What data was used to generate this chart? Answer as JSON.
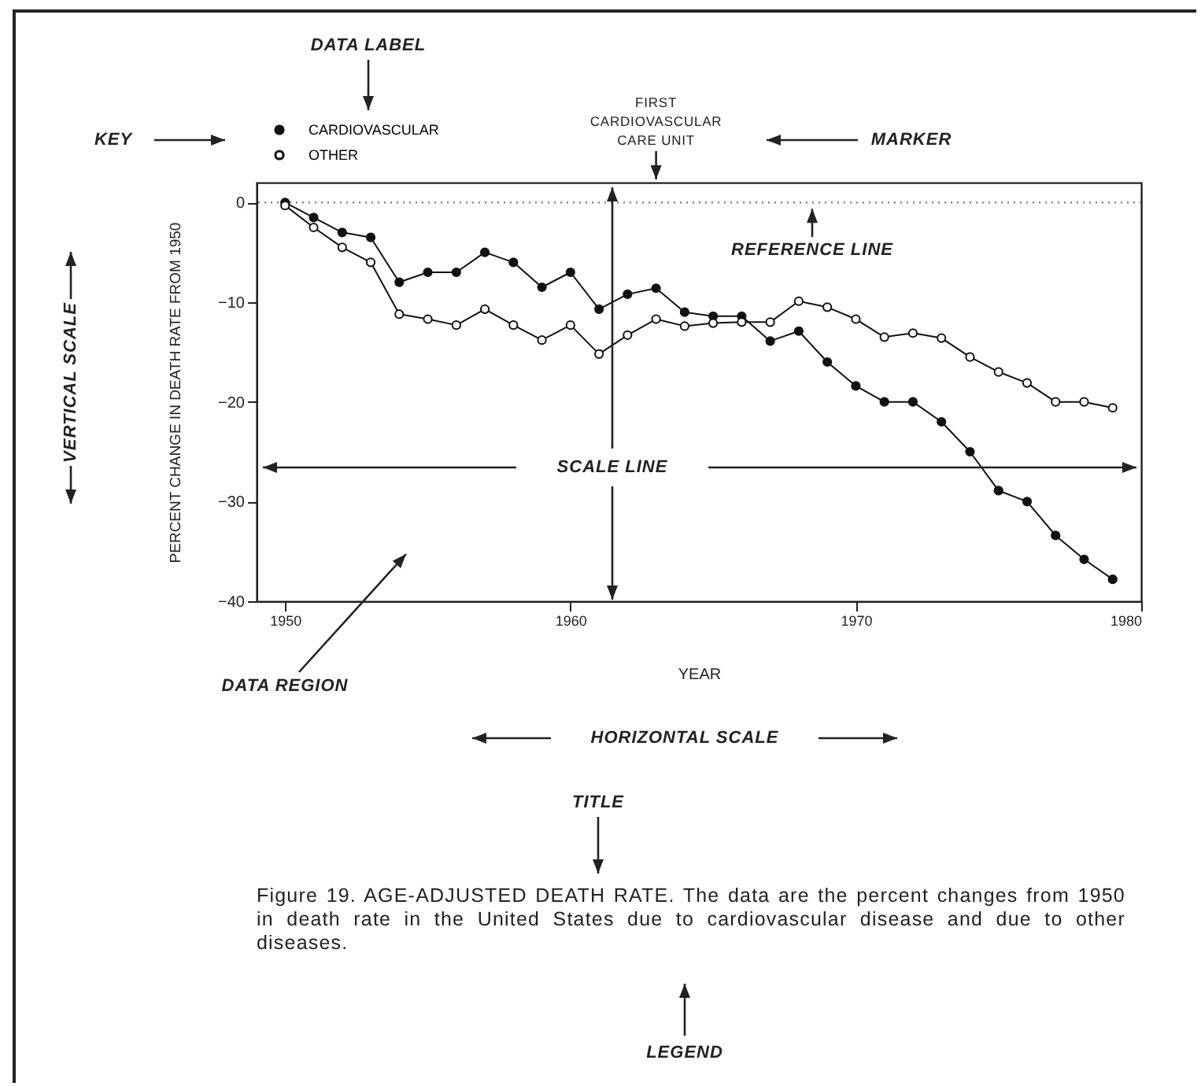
{
  "chart_data": {
    "type": "line",
    "title": "Figure 19.  AGE-ADJUSTED DEATH RATE.",
    "subtitle": "The data are the percent changes from 1950 in death rate in the United States due to cardiovascular disease and due to other diseases.",
    "xlabel": "YEAR",
    "ylabel": "PERCENT CHANGE IN DEATH RATE FROM 1950",
    "x": [
      1950,
      1951,
      1952,
      1953,
      1954,
      1955,
      1956,
      1957,
      1958,
      1959,
      1960,
      1961,
      1962,
      1963,
      1964,
      1965,
      1966,
      1967,
      1968,
      1969,
      1970,
      1971,
      1972,
      1973,
      1974,
      1975,
      1976,
      1977,
      1978,
      1979
    ],
    "series": [
      {
        "name": "CARDIOVASCULAR",
        "color": "#111111",
        "values": [
          0,
          -1.5,
          -3,
          -3.5,
          -8,
          -7,
          -7,
          -5,
          -6,
          -8.5,
          -7,
          -10.7,
          -9.2,
          -8.6,
          -11,
          -11.4,
          -11.4,
          -13.9,
          -12.9,
          -16,
          -18.4,
          -20,
          -20,
          -22,
          -25,
          -28.9,
          -30,
          -33.4,
          -35.8,
          -37.8
        ]
      },
      {
        "name": "OTHER",
        "color": "#111111",
        "values": [
          -0.3,
          -2.5,
          -4.5,
          -6,
          -11.2,
          -11.7,
          -12.3,
          -10.7,
          -12.3,
          -13.8,
          -12.3,
          -15.2,
          -13.3,
          -11.7,
          -12.4,
          -12.1,
          -12,
          -12,
          -9.9,
          -10.5,
          -11.7,
          -13.5,
          -13.1,
          -13.6,
          -15.5,
          -17,
          -18.1,
          -20,
          -20,
          -20.6
        ]
      }
    ],
    "xlim": [
      1949,
      1980
    ],
    "xticks": [
      1950,
      1960,
      1970,
      1980
    ],
    "ylim": [
      -40,
      2
    ],
    "yticks": [
      0,
      -10,
      -20,
      -30,
      -40
    ],
    "ref_lines": [
      {
        "axis": "y",
        "value": 0,
        "line_style": "dotted",
        "label": "REFERENCE LINE",
        "color": "#777777"
      }
    ],
    "annotations": [
      "DATA LABEL",
      "KEY",
      "MARKER",
      {
        "text": "FIRST CARDIOVASCULAR CARE UNIT",
        "x": 1963
      },
      "SCALE LINE",
      "VERTICAL SCALE",
      "DATA REGION",
      "HORIZONTAL SCALE",
      "TITLE",
      "LEGEND"
    ],
    "legend": "top left",
    "marker": "circle",
    "line_style": "solid",
    "grid": false
  }
}
